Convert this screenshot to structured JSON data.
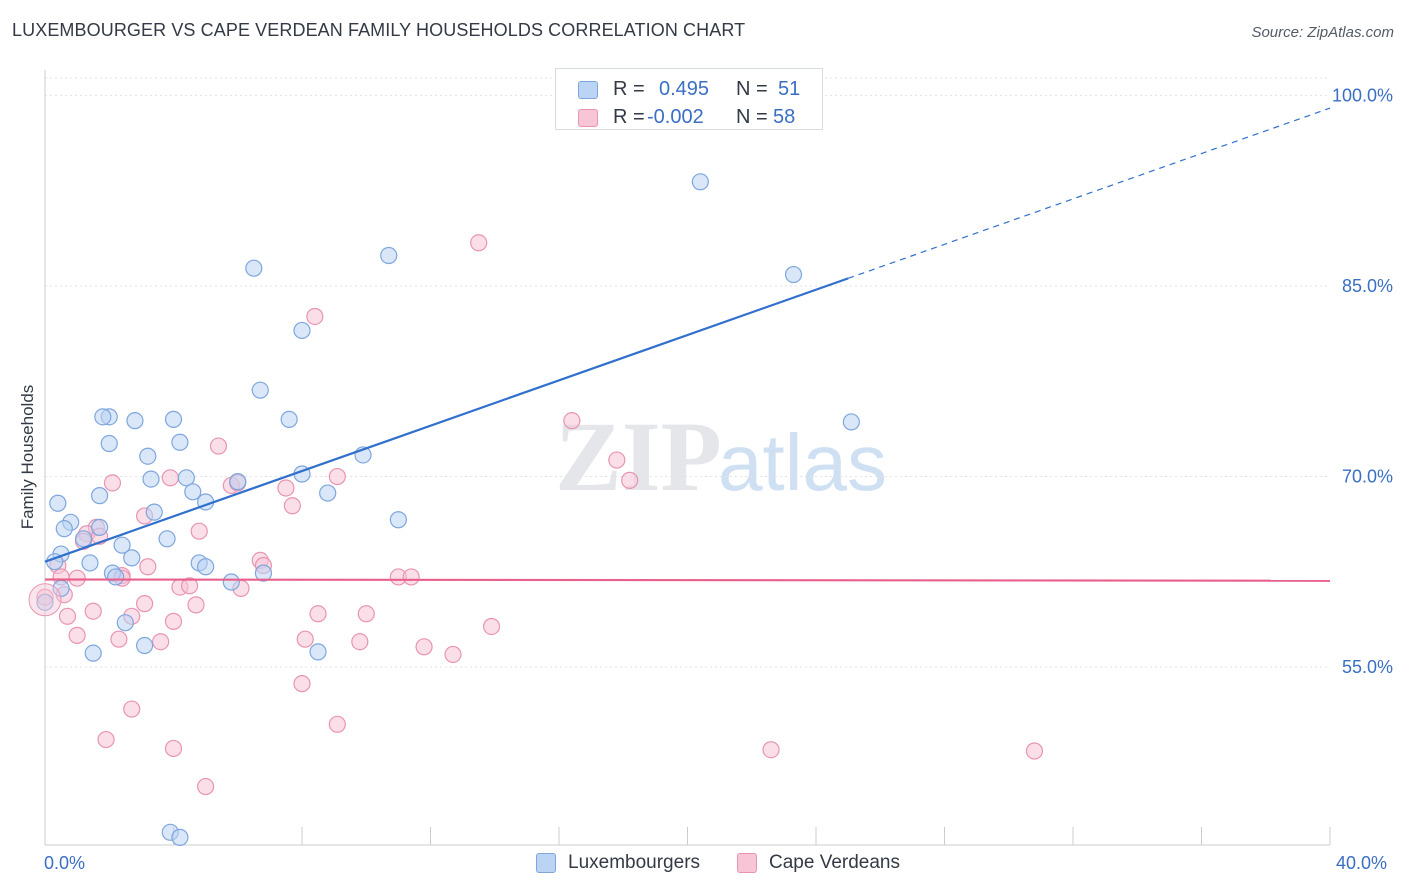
{
  "header": {
    "title": "LUXEMBOURGER VS CAPE VERDEAN FAMILY HOUSEHOLDS CORRELATION CHART",
    "source": "Source: ZipAtlas.com"
  },
  "legend": {
    "series1": {
      "r_label": "R =",
      "r_value": "0.495",
      "n_label": "N =",
      "n_value": "51"
    },
    "series2": {
      "r_label": "R =",
      "r_value": "-0.002",
      "n_label": "N =",
      "n_value": "58"
    }
  },
  "bottom_legend": {
    "series1": "Luxembourgers",
    "series2": "Cape Verdeans"
  },
  "watermark": {
    "zip": "ZIP",
    "atlas": "atlas"
  },
  "colors": {
    "blue_fill": "#bcd4f4",
    "blue_stroke": "#7ea6dd",
    "blue_line": "#3070cc",
    "pink_fill": "#f7c5d6",
    "pink_stroke": "#e894b3",
    "pink_line": "#e8608c",
    "grid": "#dfe2e6",
    "tick_text": "#3a6fc4"
  },
  "chart_data": {
    "type": "scatter",
    "title": "LUXEMBOURGER VS CAPE VERDEAN FAMILY HOUSEHOLDS CORRELATION CHART",
    "xlabel": "",
    "ylabel": "Family Households",
    "xlim": [
      0,
      40
    ],
    "ylim": [
      41,
      102
    ],
    "x_tick_labels": [
      "0.0%",
      "40.0%"
    ],
    "y_ticks": [
      55,
      70,
      85,
      100
    ],
    "y_tick_labels": [
      "55.0%",
      "70.0%",
      "85.0%",
      "100.0%"
    ],
    "series": [
      {
        "name": "Luxembourgers",
        "r": 0.495,
        "n": 51,
        "trend": {
          "x0": 0,
          "y0": 63.3,
          "x1": 25,
          "y1": 85.6,
          "dashed_to_x": 40,
          "dashed_to_y": 99.0
        },
        "points": [
          [
            20.4,
            93.2
          ],
          [
            6.5,
            86.4
          ],
          [
            10.7,
            87.4
          ],
          [
            23.3,
            85.9
          ],
          [
            8.0,
            81.5
          ],
          [
            6.7,
            76.8
          ],
          [
            2.0,
            74.7
          ],
          [
            1.8,
            74.7
          ],
          [
            2.8,
            74.4
          ],
          [
            4.0,
            74.5
          ],
          [
            7.6,
            74.5
          ],
          [
            25.1,
            74.3
          ],
          [
            2.0,
            72.6
          ],
          [
            4.2,
            72.7
          ],
          [
            3.2,
            71.6
          ],
          [
            9.9,
            71.7
          ],
          [
            3.3,
            69.8
          ],
          [
            4.4,
            69.9
          ],
          [
            8.0,
            70.2
          ],
          [
            6.0,
            69.6
          ],
          [
            4.6,
            68.8
          ],
          [
            8.8,
            68.7
          ],
          [
            1.7,
            68.5
          ],
          [
            5.0,
            68.0
          ],
          [
            0.4,
            67.9
          ],
          [
            3.4,
            67.2
          ],
          [
            11.0,
            66.6
          ],
          [
            0.8,
            66.4
          ],
          [
            1.7,
            66.0
          ],
          [
            0.6,
            65.9
          ],
          [
            1.2,
            65.1
          ],
          [
            3.8,
            65.1
          ],
          [
            2.4,
            64.6
          ],
          [
            0.5,
            63.9
          ],
          [
            2.7,
            63.6
          ],
          [
            0.3,
            63.3
          ],
          [
            1.4,
            63.2
          ],
          [
            4.8,
            63.2
          ],
          [
            5.0,
            62.9
          ],
          [
            2.1,
            62.4
          ],
          [
            6.8,
            62.4
          ],
          [
            2.2,
            62.1
          ],
          [
            5.8,
            61.7
          ],
          [
            0.5,
            61.2
          ],
          [
            2.5,
            58.5
          ],
          [
            3.1,
            56.7
          ],
          [
            1.5,
            56.1
          ],
          [
            8.5,
            56.2
          ],
          [
            3.9,
            42.0
          ],
          [
            4.2,
            41.6
          ],
          [
            0.0,
            60.1
          ]
        ]
      },
      {
        "name": "Cape Verdeans",
        "r": -0.002,
        "n": 58,
        "trend": {
          "x0": 0,
          "y0": 61.9,
          "x1": 40,
          "y1": 61.8
        },
        "points": [
          [
            13.5,
            88.4
          ],
          [
            8.4,
            82.6
          ],
          [
            16.4,
            74.4
          ],
          [
            5.4,
            72.4
          ],
          [
            17.8,
            71.3
          ],
          [
            18.2,
            69.7
          ],
          [
            2.1,
            69.5
          ],
          [
            3.9,
            69.9
          ],
          [
            5.8,
            69.3
          ],
          [
            6.0,
            69.5
          ],
          [
            7.5,
            69.1
          ],
          [
            9.1,
            70.0
          ],
          [
            7.7,
            67.7
          ],
          [
            3.1,
            66.9
          ],
          [
            1.6,
            66.0
          ],
          [
            4.8,
            65.7
          ],
          [
            1.3,
            65.5
          ],
          [
            1.7,
            65.3
          ],
          [
            1.2,
            64.9
          ],
          [
            6.7,
            63.4
          ],
          [
            0.4,
            63.0
          ],
          [
            3.2,
            62.9
          ],
          [
            6.8,
            63.0
          ],
          [
            0.5,
            62.1
          ],
          [
            2.4,
            62.2
          ],
          [
            1.0,
            62.0
          ],
          [
            11.0,
            62.1
          ],
          [
            11.4,
            62.1
          ],
          [
            4.2,
            61.3
          ],
          [
            4.5,
            61.4
          ],
          [
            6.1,
            61.2
          ],
          [
            0.6,
            60.7
          ],
          [
            3.1,
            60.0
          ],
          [
            4.7,
            59.9
          ],
          [
            1.5,
            59.4
          ],
          [
            2.7,
            59.0
          ],
          [
            0.7,
            59.0
          ],
          [
            8.5,
            59.2
          ],
          [
            10.0,
            59.2
          ],
          [
            4.0,
            58.6
          ],
          [
            13.9,
            58.2
          ],
          [
            1.0,
            57.5
          ],
          [
            2.3,
            57.2
          ],
          [
            3.6,
            57.0
          ],
          [
            8.1,
            57.2
          ],
          [
            9.8,
            57.0
          ],
          [
            11.8,
            56.6
          ],
          [
            12.7,
            56.0
          ],
          [
            8.0,
            53.7
          ],
          [
            2.7,
            51.7
          ],
          [
            9.1,
            50.5
          ],
          [
            1.9,
            49.3
          ],
          [
            4.0,
            48.6
          ],
          [
            22.6,
            48.5
          ],
          [
            30.8,
            48.4
          ],
          [
            5.0,
            45.6
          ],
          [
            0.0,
            60.5
          ],
          [
            2.4,
            62.0
          ]
        ]
      }
    ]
  }
}
